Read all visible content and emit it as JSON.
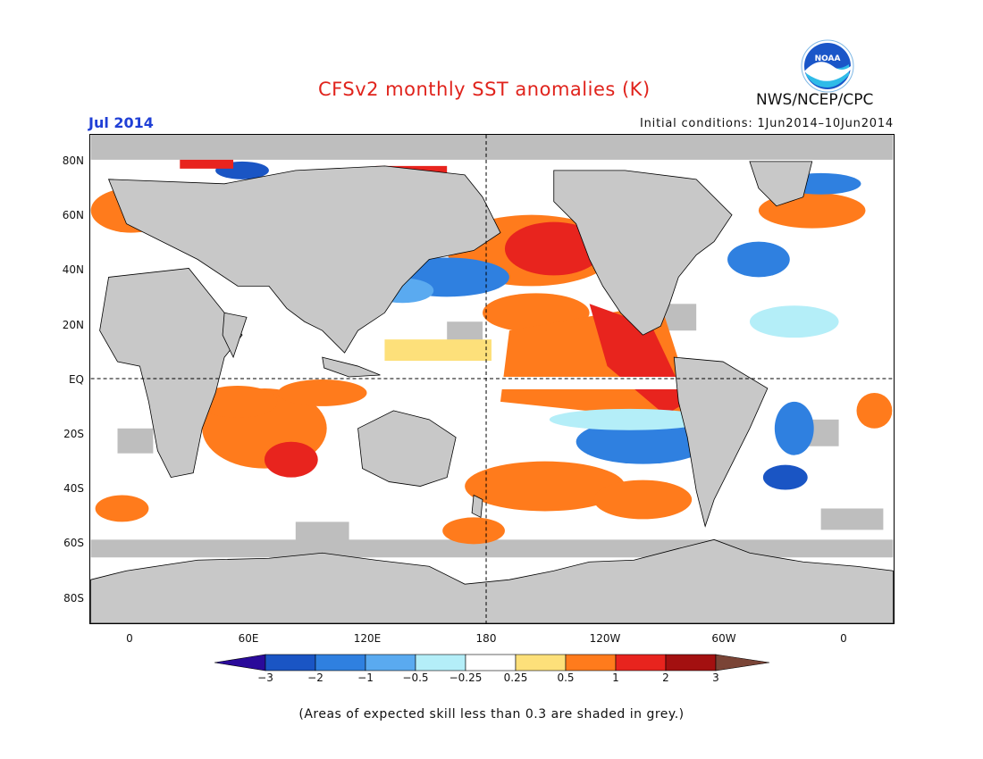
{
  "header": {
    "title": "CFSv2 monthly SST anomalies (K)",
    "month": "Jul 2014",
    "initial_conditions": "Initial conditions: 1Jun2014–10Jun2014",
    "agency": "NWS/NCEP/CPC",
    "logo_text": "NOAA"
  },
  "map": {
    "lat_labels": [
      "80N",
      "60N",
      "40N",
      "20N",
      "EQ",
      "20S",
      "40S",
      "60S",
      "80S"
    ],
    "lon_labels": [
      "0",
      "60E",
      "120E",
      "180",
      "120W",
      "60W",
      "0"
    ],
    "colors": {
      "land": "#c8c8c8",
      "low_skill_grey": "#bebebe",
      "ocean_neutral": "#ffffff",
      "coastline": "#000000"
    },
    "anomaly_regions": [
      {
        "region": "North Pacific",
        "level": "2"
      },
      {
        "region": "Northeast Pacific",
        "level": "1"
      },
      {
        "region": "Equatorial Pacific",
        "level": "1"
      },
      {
        "region": "Peru coast",
        "level": "2"
      },
      {
        "region": "South Indian Ocean",
        "level": "1"
      },
      {
        "region": "South Pacific (40S)",
        "level": "1"
      },
      {
        "region": "Southeast Pacific",
        "level": "-1"
      },
      {
        "region": "Northwest Pacific",
        "level": "-1"
      },
      {
        "region": "North Atlantic",
        "level": "-1"
      }
    ]
  },
  "colorbar": {
    "levels": [
      "−3",
      "−2",
      "−1",
      "−0.5",
      "−0.25",
      "0.25",
      "0.5",
      "1",
      "2",
      "3"
    ],
    "colors": [
      "#2a0a9a",
      "#1a55c4",
      "#2f80e0",
      "#5aaaf0",
      "#b4eef8",
      "#ffffff",
      "#fde07a",
      "#ff7b1c",
      "#e8241e",
      "#a31010",
      "#7a4436"
    ]
  },
  "footnote": "(Areas of expected skill less than 0.3 are shaded in grey.)"
}
